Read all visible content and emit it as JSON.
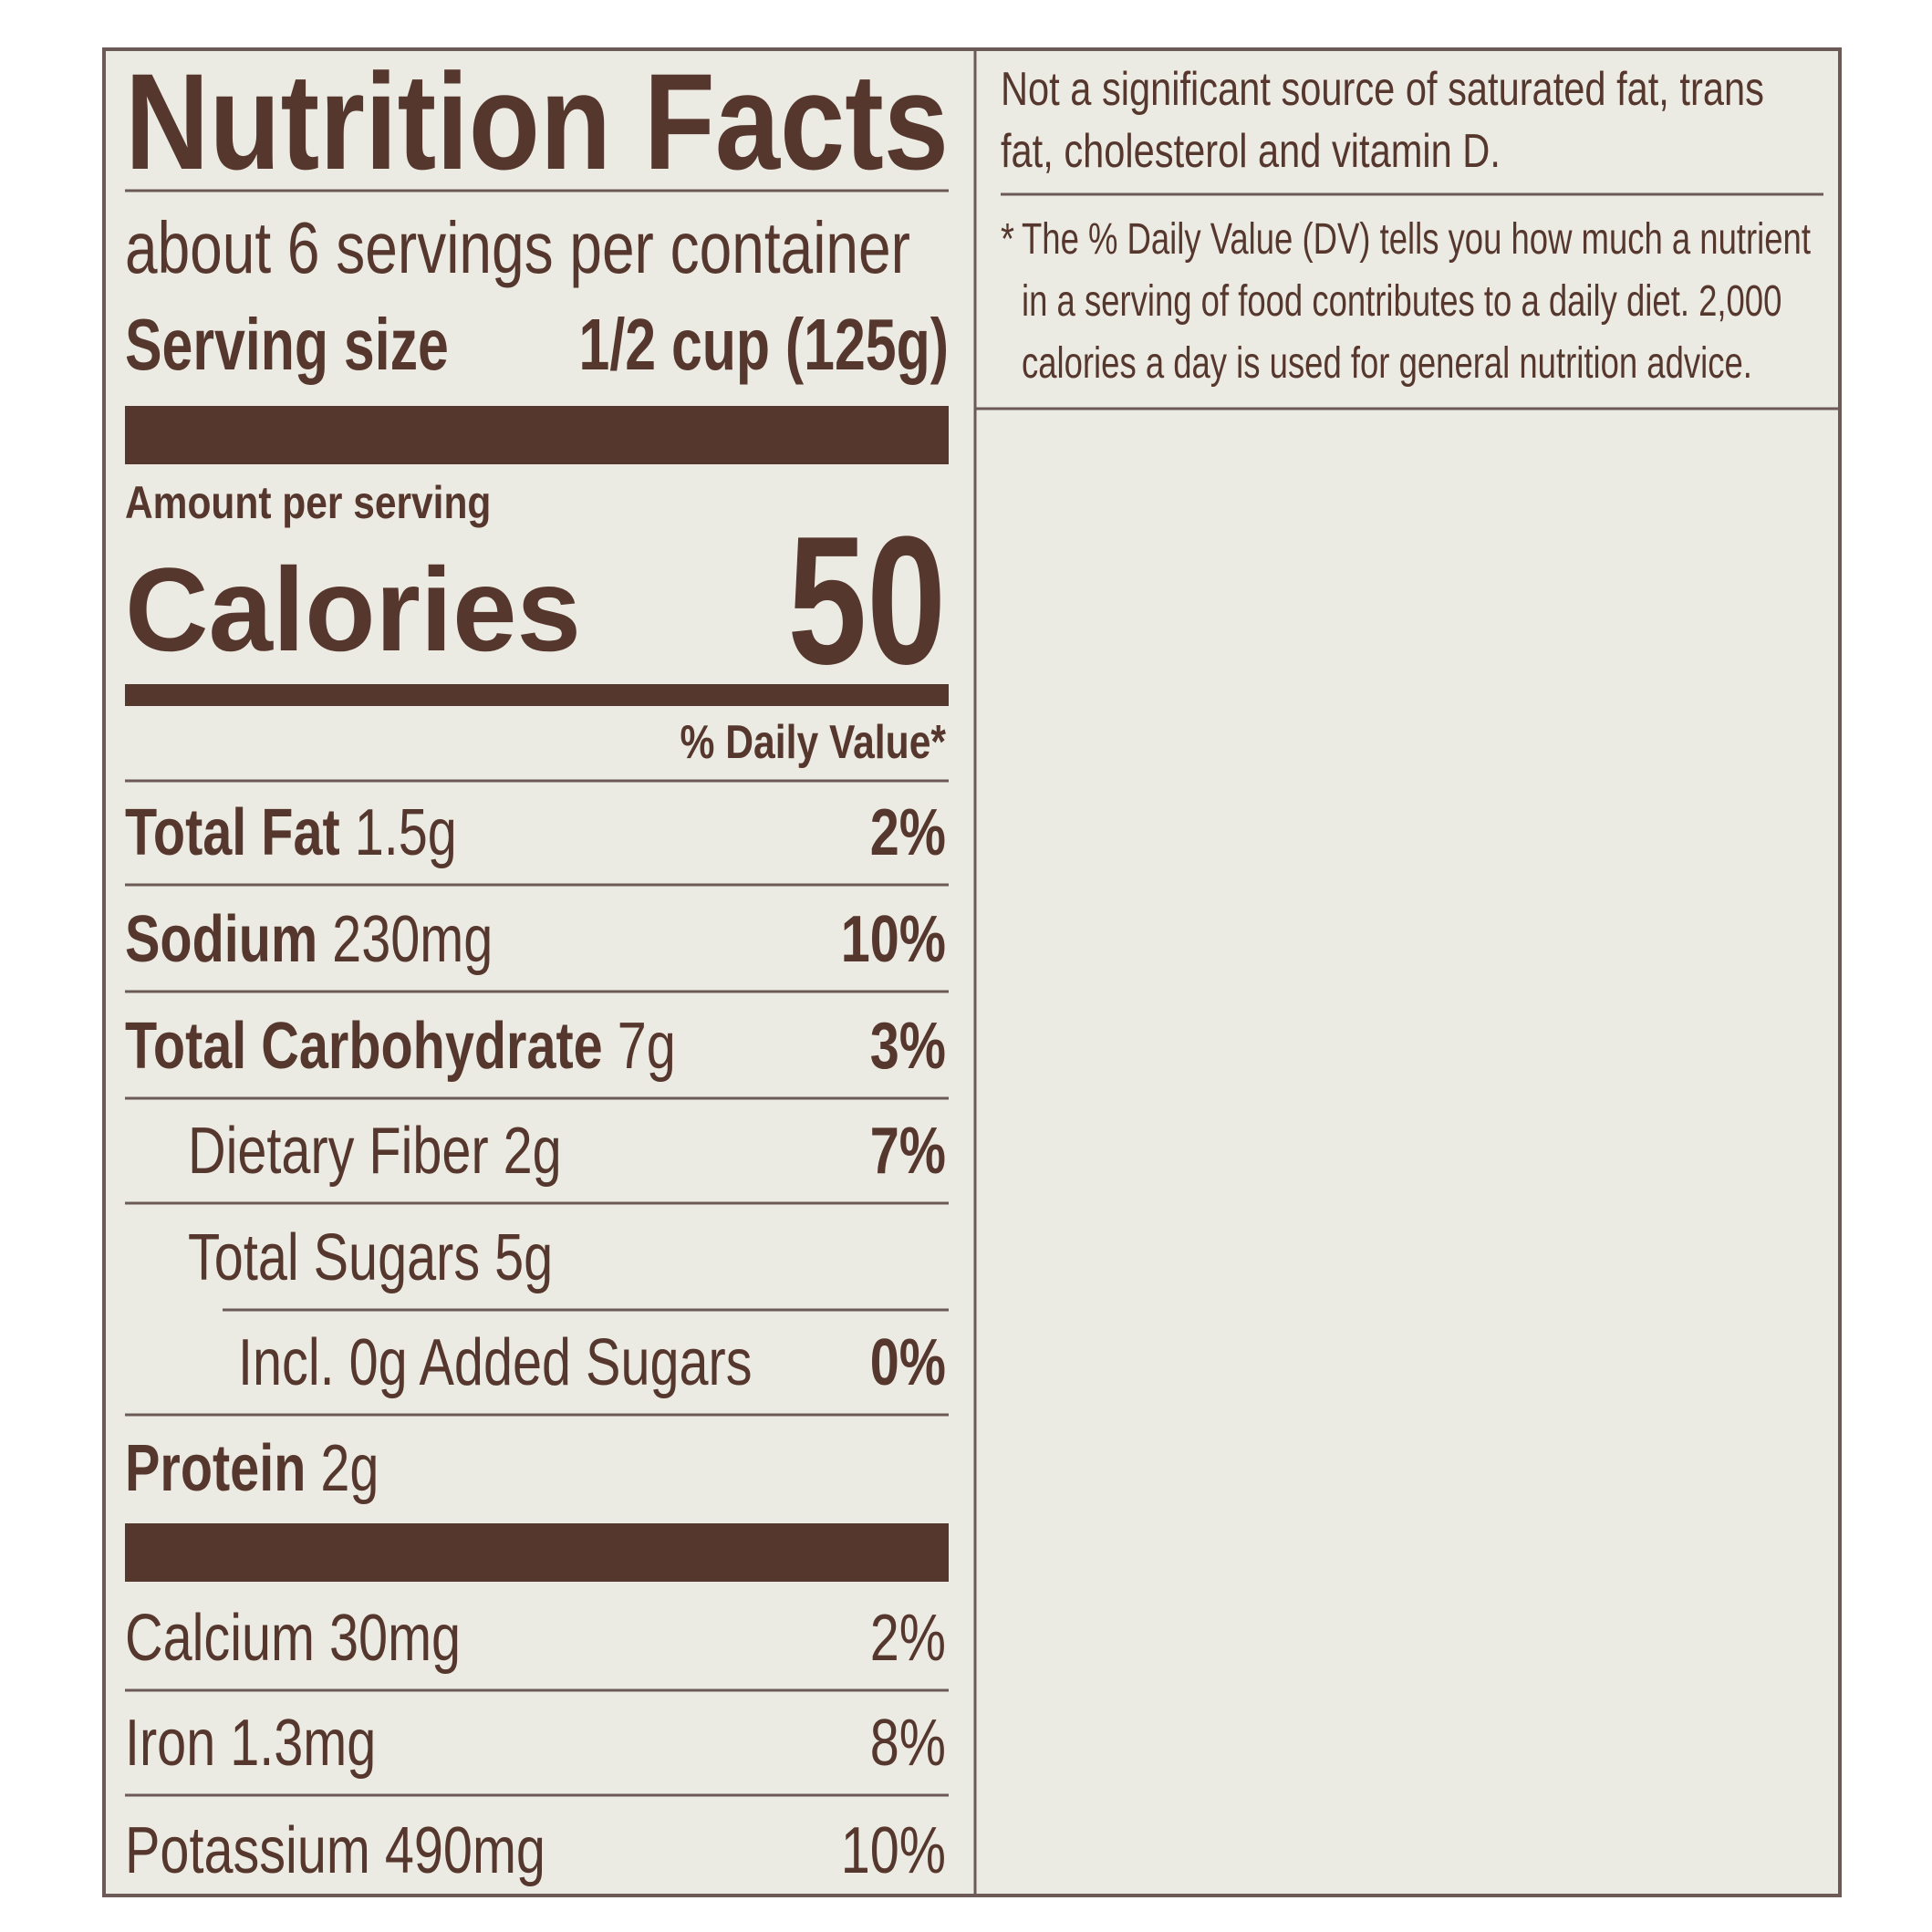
{
  "header": {
    "title": "Nutrition Facts",
    "servings": "about 6 servings per container",
    "serving_size_label": "Serving size",
    "serving_size_value": "1/2 cup (125g)"
  },
  "calories": {
    "amount_label": "Amount per serving",
    "label": "Calories",
    "value": "50"
  },
  "dv_header": "% Daily Value*",
  "rows": [
    {
      "name": "Total Fat",
      "amount": "1.5g",
      "dv": "2%"
    },
    {
      "name": "Sodium",
      "amount": "230mg",
      "dv": "10%"
    },
    {
      "name": "Total Carbohydrate",
      "amount": "7g",
      "dv": "3%"
    },
    {
      "name": "Dietary Fiber",
      "amount": "2g",
      "dv": "7%"
    },
    {
      "name": "Total Sugars",
      "amount": "5g"
    },
    {
      "name": "Incl. 0g Added Sugars",
      "dv": "0%"
    },
    {
      "name": "Protein",
      "amount": "2g"
    }
  ],
  "minerals": [
    {
      "name": "Calcium",
      "amount": "30mg",
      "dv": "2%"
    },
    {
      "name": "Iron",
      "amount": "1.3mg",
      "dv": "8%"
    },
    {
      "name": "Potassium",
      "amount": "490mg",
      "dv": "10%"
    }
  ],
  "side": {
    "note": [
      "Not a significant source of saturated fat, trans",
      "fat, cholesterol and vitamin D."
    ],
    "footnote_mark": "*",
    "footnote": [
      "The % Daily Value (DV) tells you how much a nutrient",
      "in a serving of food contributes to a daily diet. 2,000",
      "calories a day is used for general nutrition advice."
    ]
  }
}
